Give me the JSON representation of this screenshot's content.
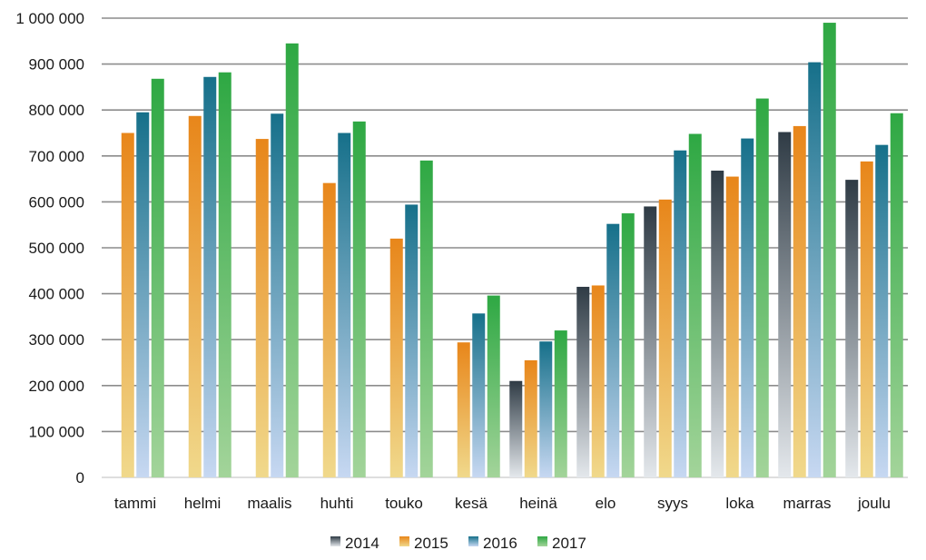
{
  "chart_data": {
    "type": "bar",
    "categories": [
      "tammi",
      "helmi",
      "maalis",
      "huhti",
      "touko",
      "kesä",
      "heinä",
      "elo",
      "syys",
      "loka",
      "marras",
      "joulu"
    ],
    "series": [
      {
        "name": "2014",
        "color_top": "#2f3b45",
        "color_bottom": "#e4e8ec",
        "values": [
          null,
          null,
          null,
          null,
          null,
          null,
          210000,
          415000,
          590000,
          668000,
          752000,
          648000
        ]
      },
      {
        "name": "2015",
        "color_top": "#e8861a",
        "color_bottom": "#f0d98c",
        "values": [
          750000,
          787000,
          737000,
          641000,
          520000,
          294000,
          255000,
          418000,
          605000,
          655000,
          765000,
          688000
        ]
      },
      {
        "name": "2016",
        "color_top": "#16708a",
        "color_bottom": "#c7d8f2",
        "values": [
          795000,
          872000,
          792000,
          750000,
          594000,
          357000,
          296000,
          552000,
          712000,
          738000,
          904000,
          724000
        ]
      },
      {
        "name": "2017",
        "color_top": "#2ea843",
        "color_bottom": "#a3d49a",
        "values": [
          868000,
          882000,
          945000,
          775000,
          690000,
          396000,
          320000,
          575000,
          748000,
          825000,
          990000,
          793000
        ]
      }
    ],
    "ylim": [
      0,
      1000000
    ],
    "yticks": [
      0,
      100000,
      200000,
      300000,
      400000,
      500000,
      600000,
      700000,
      800000,
      900000,
      1000000
    ],
    "ytick_labels": [
      "0",
      "100 000",
      "200 000",
      "300 000",
      "400 000",
      "500 000",
      "600 000",
      "700 000",
      "800 000",
      "900 000",
      "1 000 000"
    ],
    "grid": true,
    "legend_placement": "bottom-center",
    "title": "",
    "xlabel": "",
    "ylabel": ""
  }
}
